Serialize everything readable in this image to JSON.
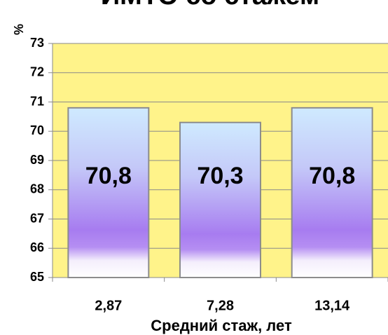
{
  "chart_data": {
    "type": "bar",
    "title": "ИМТО со стажем",
    "y_label": "%",
    "x_label": "Средний стаж, лет",
    "categories": [
      "2,87",
      "7,28",
      "13,14"
    ],
    "values": [
      70.8,
      70.3,
      70.8
    ],
    "value_labels": [
      "70,8",
      "70,3",
      "70,8"
    ],
    "ylim": [
      65,
      73
    ],
    "yticks": [
      65,
      66,
      67,
      68,
      69,
      70,
      71,
      72,
      73
    ],
    "grid": true,
    "background": "#fff38a"
  }
}
